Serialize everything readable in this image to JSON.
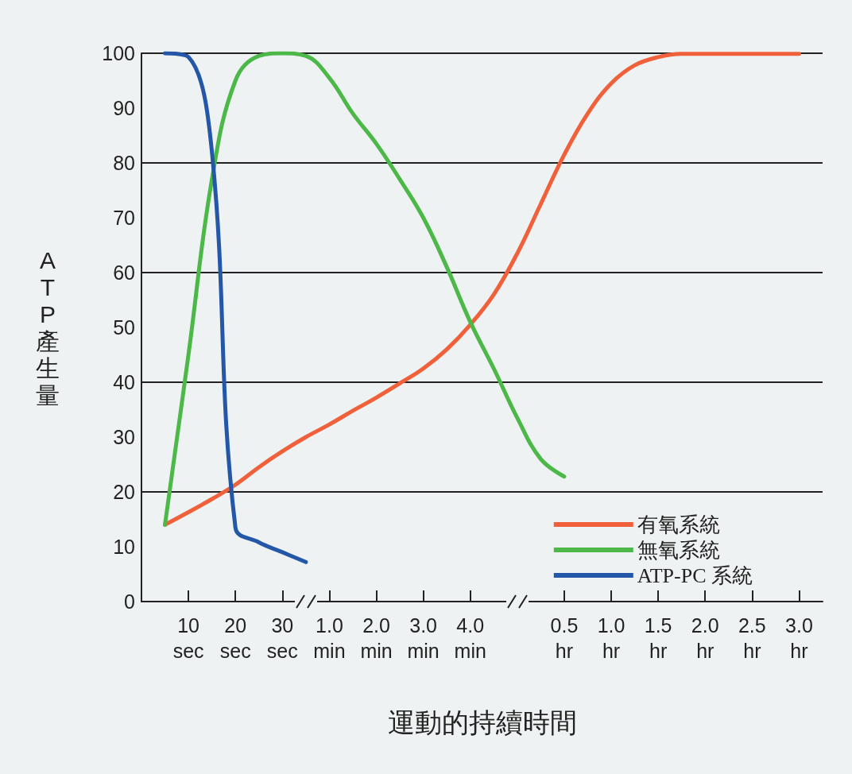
{
  "chart_data": {
    "type": "line",
    "xlabel": "運動的持續時間",
    "ylabel": "ATP產生量",
    "categories": [
      null,
      null,
      "10\nsec",
      null,
      "20\nsec",
      null,
      "30\nsec",
      null,
      "1.0\nmin",
      null,
      "2.0\nmin",
      null,
      "3.0\nmin",
      null,
      "4.0\nmin",
      null,
      null,
      null,
      "0.5\nhr",
      null,
      "1.0\nhr",
      null,
      "1.5\nhr",
      null,
      "2.0\nhr",
      null,
      "2.5\nhr",
      null,
      "3.0\nhr",
      null
    ],
    "ylim": [
      0,
      100
    ],
    "yticks": [
      0,
      10,
      20,
      30,
      40,
      50,
      60,
      70,
      80,
      90,
      100
    ],
    "grid": "y",
    "legend": "bottom right",
    "marker": "none",
    "line_style": "solid",
    "series": [
      {
        "name": "有氧系統",
        "color": "#f0603a",
        "values": [
          null,
          14,
          16.3,
          18.7,
          21.3,
          24.5,
          27.4,
          30,
          32.3,
          34.8,
          37.2,
          39.8,
          42.5,
          46,
          50.5,
          56,
          63.5,
          72.5,
          81.5,
          89,
          94.5,
          97.8,
          99.3,
          99.9,
          99.9,
          99.9,
          99.9,
          99.9,
          99.9,
          null
        ]
      },
      {
        "name": "無氧系統",
        "color": "#4cb848",
        "values": [
          null,
          14,
          45,
          77,
          95,
          99.5,
          100,
          99.5,
          95.5,
          89,
          83.5,
          77,
          70,
          61,
          51,
          42.5,
          33.5,
          26,
          22.8,
          null,
          null,
          null,
          null,
          null,
          null,
          null,
          null,
          null,
          null,
          null
        ]
      },
      {
        "name": "ATP-PC 系統",
        "color": "#2457a8",
        "values": [
          null,
          100,
          99.3,
          82,
          13.5,
          10.8,
          9,
          7.2,
          null,
          null,
          null,
          null,
          null,
          null,
          null,
          null,
          null,
          null,
          null,
          null,
          null,
          null,
          null,
          null,
          null,
          null,
          null,
          null,
          null,
          null
        ]
      }
    ]
  }
}
